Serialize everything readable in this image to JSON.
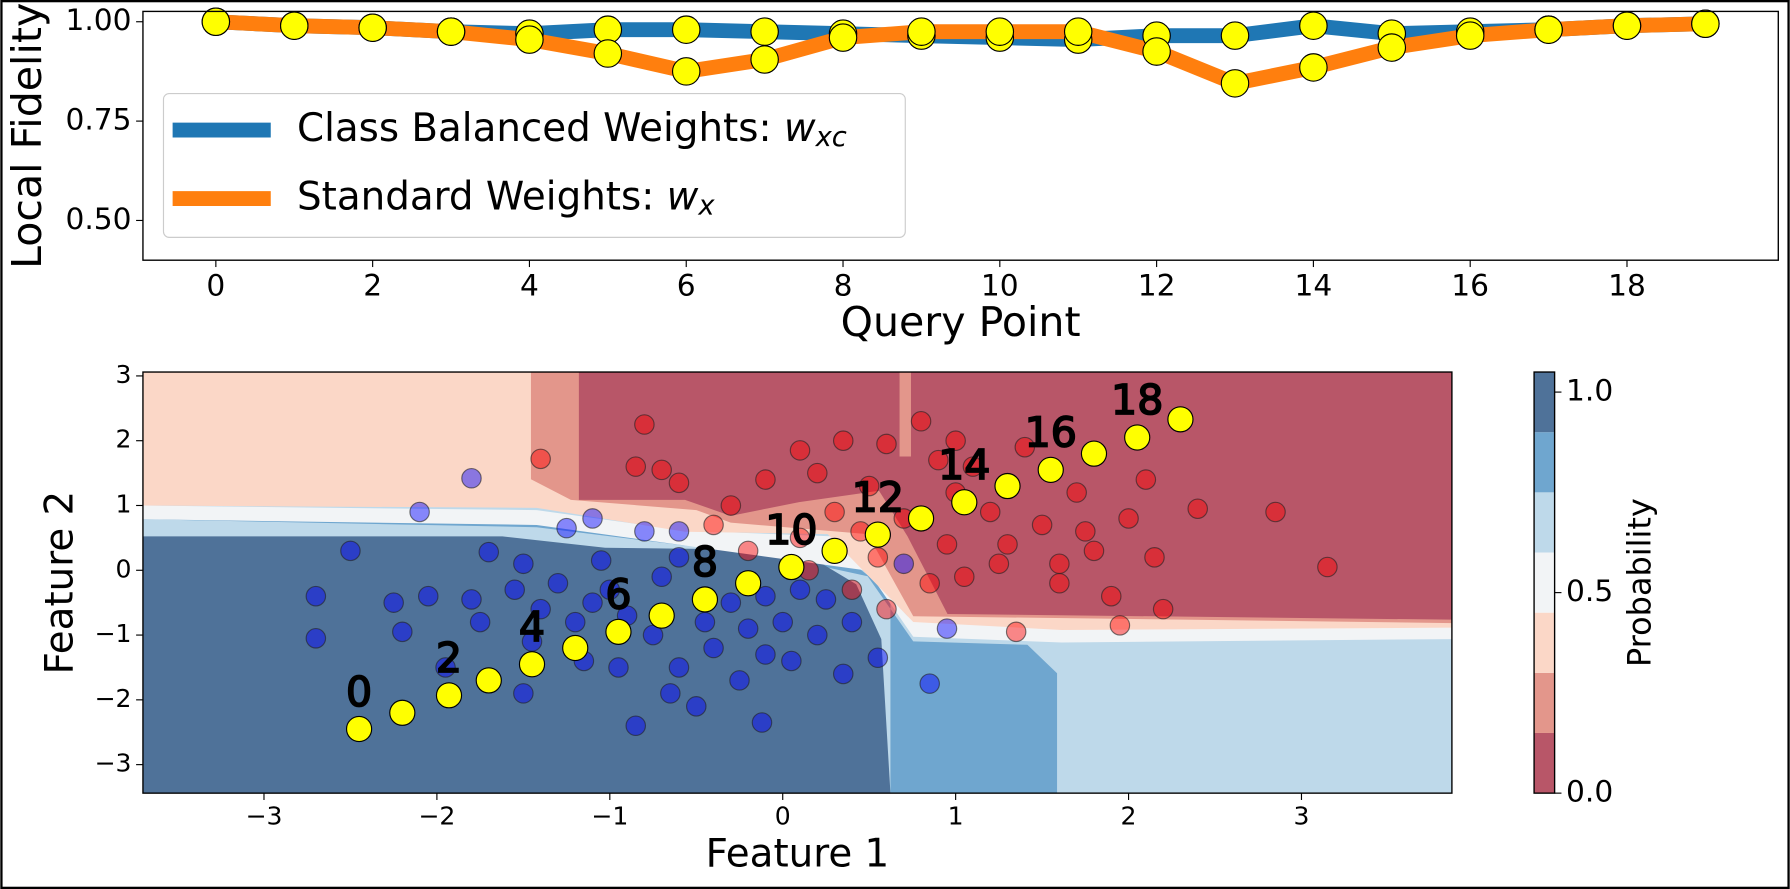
{
  "chart_data": [
    {
      "type": "line",
      "x_label": "Query Point",
      "y_label": "Local Fidelity",
      "x": [
        0,
        1,
        2,
        3,
        4,
        5,
        6,
        7,
        8,
        9,
        10,
        11,
        12,
        13,
        14,
        15,
        16,
        17,
        18,
        19
      ],
      "series": [
        {
          "name": "Class Balanced Weights: wxc",
          "color": "#1f77b4",
          "values": [
            1.0,
            0.99,
            0.985,
            0.975,
            0.97,
            0.98,
            0.98,
            0.975,
            0.97,
            0.965,
            0.96,
            0.955,
            0.965,
            0.965,
            0.99,
            0.97,
            0.975,
            0.98,
            0.99,
            0.995
          ]
        },
        {
          "name": "Standard Weights: wx",
          "color": "#ff7f0e",
          "values": [
            1.0,
            0.99,
            0.985,
            0.975,
            0.955,
            0.92,
            0.875,
            0.905,
            0.96,
            0.975,
            0.975,
            0.975,
            0.925,
            0.845,
            0.885,
            0.935,
            0.965,
            0.98,
            0.99,
            0.995
          ]
        }
      ],
      "marker_color": "#ffff00",
      "legend": "center left",
      "xlim": [
        -0.93,
        19.93
      ],
      "xticks": [
        0,
        2,
        4,
        6,
        8,
        10,
        12,
        14,
        16,
        18
      ],
      "ylim": [
        0.4,
        1.026
      ],
      "yticks": [
        {
          "value": 0.5,
          "label": "0.50"
        },
        {
          "value": 0.75,
          "label": "0.75"
        },
        {
          "value": 1.0,
          "label": "1.00"
        }
      ]
    },
    {
      "type": "scatter",
      "x_label": "Feature 1",
      "y_label": "Feature 2",
      "xlim": [
        -3.7,
        3.87
      ],
      "ylim": [
        -3.44,
        3.06
      ],
      "xticks": [
        {
          "value": -3,
          "label": "−3"
        },
        {
          "value": -2,
          "label": "−2"
        },
        {
          "value": -1,
          "label": "−1"
        },
        0,
        1,
        2,
        3
      ],
      "yticks": [
        {
          "value": -3,
          "label": "−3"
        },
        {
          "value": -2,
          "label": "−2"
        },
        {
          "value": -1,
          "label": "−1"
        },
        0,
        1,
        2,
        3
      ],
      "series": [
        {
          "color": "#0000ff",
          "x": [
            -2.7,
            -2.7,
            -2.5,
            -2.25,
            -2.2,
            -2.05,
            -2.1,
            -1.95,
            -1.8,
            -1.75,
            -1.7,
            -1.5,
            -1.55,
            -1.45,
            -1.4,
            -1.25,
            -1.3,
            -1.2,
            -1.1,
            -1.05,
            -1.0,
            -0.95,
            -0.9,
            -0.8,
            -0.85,
            -0.75,
            -0.7,
            -0.6,
            -0.6,
            -0.5,
            -0.45,
            -0.4,
            -0.3,
            -0.25,
            -0.2,
            -0.1,
            -0.1,
            0.0,
            0.05,
            0.1,
            0.2,
            0.25,
            0.35,
            0.4,
            0.55,
            -1.5,
            -1.15,
            -0.65,
            -0.12,
            0.85,
            -1.8,
            -1.1,
            0.7,
            0.95,
            -0.6
          ],
          "values": [
            -0.4,
            -1.05,
            0.3,
            -0.5,
            -0.95,
            -0.4,
            0.9,
            -1.5,
            -0.45,
            -0.8,
            0.28,
            0.1,
            -0.3,
            -1.1,
            -0.6,
            0.65,
            -0.2,
            -0.8,
            -0.5,
            0.15,
            -0.3,
            -1.5,
            -0.7,
            0.6,
            -2.4,
            -1.0,
            -0.1,
            -1.5,
            0.2,
            -2.1,
            -0.8,
            -1.2,
            -0.5,
            -1.7,
            -0.9,
            -0.4,
            -1.3,
            -0.8,
            -1.4,
            -0.3,
            -1.0,
            -0.45,
            -1.6,
            -0.8,
            -1.35,
            -1.9,
            -1.4,
            -1.9,
            -2.35,
            -1.75,
            1.42,
            0.8,
            0.1,
            -0.9,
            0.6
          ]
        },
        {
          "color": "#ff0000",
          "x": [
            -1.4,
            -0.8,
            -0.85,
            -0.7,
            -0.1,
            0.1,
            0.2,
            0.35,
            0.5,
            0.6,
            0.8,
            0.9,
            1.0,
            1.1,
            1.2,
            1.3,
            1.4,
            1.5,
            1.6,
            1.7,
            1.8,
            1.9,
            2.0,
            2.1,
            2.2,
            2.4,
            2.85,
            3.15,
            1.35,
            1.95,
            0.85,
            0.95,
            1.05,
            0.7,
            0.55,
            0.3,
            0.1,
            -0.3,
            -0.4,
            -0.2,
            0.15,
            0.4,
            1.25,
            1.6,
            1.75,
            0.6,
            1.0,
            0.45,
            -0.6,
            2.15
          ],
          "values": [
            1.72,
            2.25,
            1.6,
            1.55,
            1.4,
            1.85,
            1.5,
            2.0,
            1.3,
            1.95,
            2.3,
            1.7,
            2.0,
            1.6,
            0.9,
            0.4,
            1.9,
            0.7,
            0.1,
            1.2,
            0.3,
            -0.4,
            0.8,
            1.4,
            -0.6,
            0.95,
            0.9,
            0.05,
            -0.95,
            -0.85,
            -0.2,
            0.4,
            -0.1,
            0.8,
            0.2,
            0.9,
            0.5,
            1.0,
            0.7,
            0.3,
            0.0,
            -0.3,
            0.1,
            -0.2,
            0.6,
            -0.6,
            1.2,
            0.6,
            1.35,
            0.2
          ]
        },
        {
          "color": "#ffff00",
          "x": [
            -2.45,
            -2.2,
            -1.93,
            -1.7,
            -1.45,
            -1.2,
            -0.95,
            -0.7,
            -0.45,
            -0.2,
            0.05,
            0.3,
            0.55,
            0.8,
            1.05,
            1.3,
            1.55,
            1.8,
            2.05,
            2.3
          ],
          "values": [
            -2.45,
            -2.2,
            -1.93,
            -1.7,
            -1.45,
            -1.2,
            -0.95,
            -0.7,
            -0.45,
            -0.2,
            0.05,
            0.3,
            0.55,
            0.8,
            1.05,
            1.3,
            1.55,
            1.8,
            2.05,
            2.33
          ],
          "labels": [
            "0",
            null,
            "2",
            null,
            "4",
            null,
            "6",
            null,
            "8",
            null,
            "10",
            null,
            "12",
            null,
            "14",
            null,
            "16",
            null,
            "18",
            null
          ]
        }
      ],
      "colorbar": {
        "label": "Probability",
        "lim": [
          0,
          1.05
        ],
        "levels": [
          0,
          0.15,
          0.3,
          0.45,
          0.6,
          0.75,
          0.9,
          1.05
        ],
        "colors": [
          "#b85668",
          "#e3968b",
          "#fbd7c7",
          "#f2f4f6",
          "#bed9ea",
          "#6fa6cf",
          "#4f7299"
        ],
        "ticks": [
          {
            "value": 0,
            "label": "0.0"
          },
          {
            "value": 0.5,
            "label": "0.5"
          },
          {
            "value": 1.0,
            "label": "1.0"
          }
        ]
      }
    }
  ]
}
